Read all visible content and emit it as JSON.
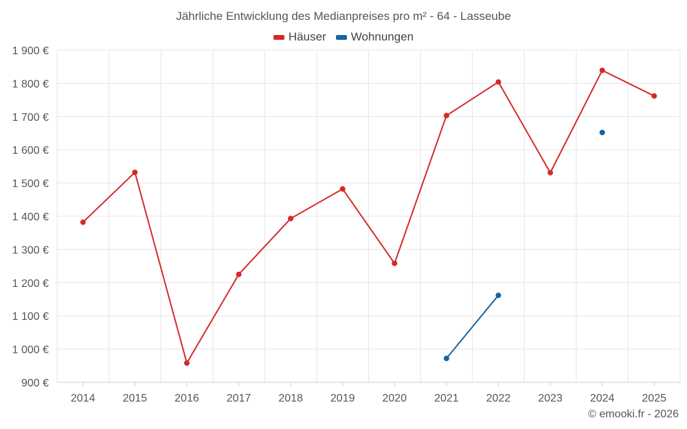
{
  "chart_data": {
    "type": "line",
    "title": "Jährliche Entwicklung des Medianpreises pro m² - 64 - Lasseube",
    "xlabel": "",
    "ylabel": "",
    "categories": [
      "2014",
      "2015",
      "2016",
      "2017",
      "2018",
      "2019",
      "2020",
      "2021",
      "2022",
      "2023",
      "2024",
      "2025"
    ],
    "y_ticks": [
      "900 €",
      "1 000 €",
      "1 100 €",
      "1 200 €",
      "1 300 €",
      "1 400 €",
      "1 500 €",
      "1 600 €",
      "1 700 €",
      "1 800 €",
      "1 900 €"
    ],
    "ylim": [
      900,
      1900
    ],
    "grid": true,
    "legend_position": "top-center",
    "series": [
      {
        "name": "Häuser",
        "color": "#d32a2a",
        "values": [
          1382,
          1532,
          958,
          1225,
          1393,
          1482,
          1258,
          1703,
          1804,
          1531,
          1839,
          1762
        ]
      },
      {
        "name": "Wohnungen",
        "color": "#1565a0",
        "values": [
          null,
          null,
          null,
          null,
          null,
          null,
          null,
          972,
          1162,
          null,
          1652,
          null
        ]
      }
    ]
  },
  "credit": "© emooki.fr - 2026"
}
